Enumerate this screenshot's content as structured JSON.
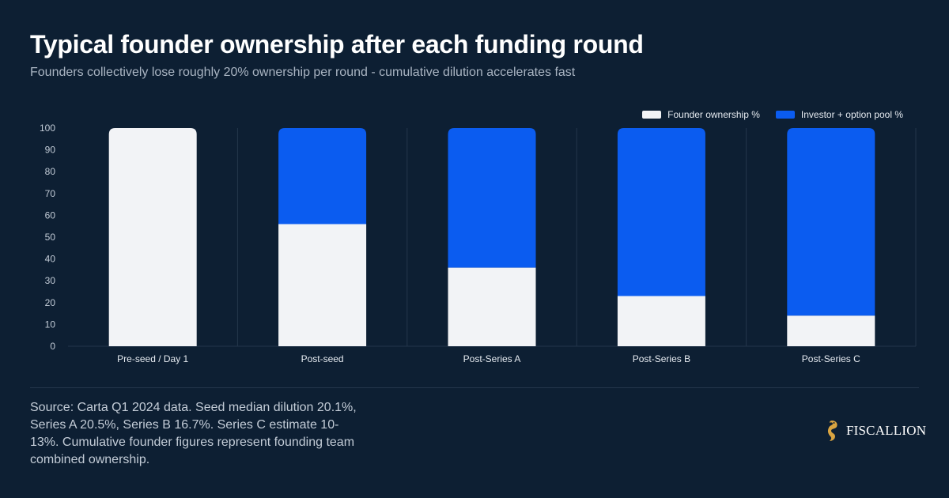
{
  "header": {
    "title": "Typical founder ownership after each funding round",
    "subtitle": "Founders collectively lose roughly 20% ownership per round - cumulative dilution accelerates fast"
  },
  "footer": {
    "source": "Source: Carta Q1 2024 data. Seed median dilution 20.1%, Series A 20.5%, Series B 16.7%. Series C estimate 10-13%. Cumulative founder figures represent founding team combined ownership.",
    "brand_name": "FISCALLION",
    "brand_icon": "seahorse-logo-icon"
  },
  "colors": {
    "background": "#0d1f33",
    "founder": "#f2f3f6",
    "investor": "#0b5cf0",
    "grid": "#24364b",
    "accent_gold": "#d9a441"
  },
  "chart_data": {
    "type": "bar",
    "stacked": true,
    "categories": [
      "Pre-seed / Day 1",
      "Post-seed",
      "Post-Series A",
      "Post-Series B",
      "Post-Series C"
    ],
    "series": [
      {
        "name": "Founder ownership %",
        "values": [
          100,
          56,
          36,
          23,
          14
        ],
        "color": "#f2f3f6"
      },
      {
        "name": "Investor + option pool %",
        "values": [
          0,
          44,
          64,
          77,
          86
        ],
        "color": "#0b5cf0"
      }
    ],
    "ylim": [
      0,
      100
    ],
    "yticks": [
      0,
      10,
      20,
      30,
      40,
      50,
      60,
      70,
      80,
      90,
      100
    ],
    "xlabel": "",
    "ylabel": "",
    "grid": true,
    "legend_position": "top-right"
  }
}
